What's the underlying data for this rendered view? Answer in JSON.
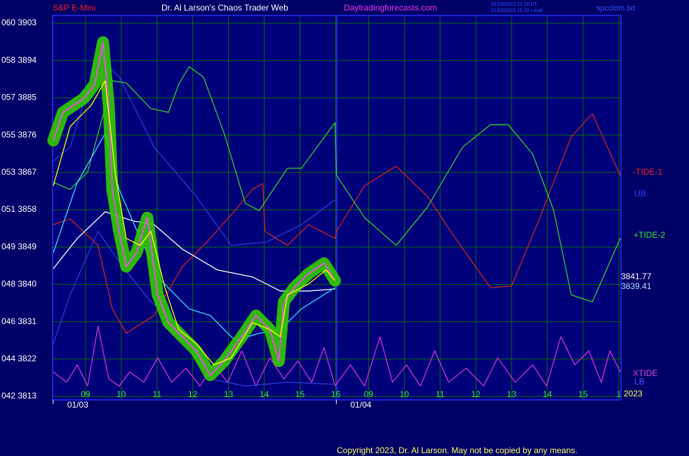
{
  "chart_data": {
    "type": "line",
    "title": "Dr. Al Larson's Chaos Trader Web",
    "subtitle": "S&P E-Mini",
    "site": "Daytradingforecasts.com",
    "timestamps": [
      "01/03/2023 21:20 UT",
      "01/03/2023 15:20 Local"
    ],
    "file": "spcclom.txt",
    "copyright": "Copyright 2023, Dr. Al Larson. May not be copied by any means.",
    "year": "2023",
    "date_labels": [
      {
        "value": 0.92,
        "label": "01/03"
      },
      {
        "value": 8.84,
        "label": "01/04"
      }
    ],
    "last_values": [
      "3841.77",
      "3839.41"
    ],
    "grid": true,
    "xlim": [
      0,
      15.9
    ],
    "ylim": [
      3812.15,
      3904.86
    ],
    "xticks": [
      {
        "value": 0.92,
        "label": "09"
      },
      {
        "value": 1.92,
        "label": "10"
      },
      {
        "value": 2.92,
        "label": "11"
      },
      {
        "value": 3.92,
        "label": "12"
      },
      {
        "value": 4.92,
        "label": "13"
      },
      {
        "value": 5.92,
        "label": "14"
      },
      {
        "value": 6.92,
        "label": "15"
      },
      {
        "value": 7.92,
        "label": "16"
      },
      {
        "value": 8.84,
        "label": "09"
      },
      {
        "value": 9.84,
        "label": "10"
      },
      {
        "value": 10.84,
        "label": "11"
      },
      {
        "value": 11.84,
        "label": "12"
      },
      {
        "value": 12.84,
        "label": "13"
      },
      {
        "value": 13.84,
        "label": "14"
      },
      {
        "value": 14.84,
        "label": "15"
      },
      {
        "value": 15.84,
        "label": "1"
      }
    ],
    "yticks": [
      {
        "value": 3813,
        "label": "042 3813"
      },
      {
        "value": 3822,
        "label": "044 3822"
      },
      {
        "value": 3831,
        "label": "046 3831"
      },
      {
        "value": 3840,
        "label": "048 3840"
      },
      {
        "value": 3849,
        "label": "049 3849"
      },
      {
        "value": 3858,
        "label": "051 3858"
      },
      {
        "value": 3867,
        "label": "053 3867"
      },
      {
        "value": 3876,
        "label": "055 3876"
      },
      {
        "value": 3885,
        "label": "057 3885"
      },
      {
        "value": 3894,
        "label": "058 3894"
      },
      {
        "value": 3903,
        "label": "060 3903"
      }
    ],
    "series": [
      {
        "name": "XTIDE",
        "color": "#cc33cc",
        "x": [
          0.02,
          0.39,
          0.69,
          0.98,
          1.27,
          1.57,
          1.86,
          2.16,
          2.55,
          2.94,
          3.33,
          3.73,
          4.12,
          4.51,
          4.9,
          5.29,
          5.69,
          6.08,
          6.47,
          6.86,
          7.25,
          7.59,
          7.9,
          8.33,
          8.73,
          9.16,
          9.51,
          9.9,
          10.29,
          10.69,
          11.08,
          11.57,
          12.06,
          12.45,
          12.94,
          13.43,
          13.82,
          14.22,
          14.61,
          15.0,
          15.35,
          15.59,
          15.88
        ],
        "values": [
          3818.9,
          3816.4,
          3820.6,
          3815.5,
          3829.9,
          3817.2,
          3815.5,
          3818.9,
          3816.4,
          3822.3,
          3816.4,
          3819.8,
          3815.5,
          3820.6,
          3816.4,
          3824.0,
          3815.5,
          3822.3,
          3817.2,
          3821.5,
          3816.4,
          3824.8,
          3815.5,
          3820.6,
          3815.5,
          3827.4,
          3816.4,
          3820.6,
          3815.5,
          3824.0,
          3816.4,
          3819.8,
          3815.5,
          3822.3,
          3816.4,
          3820.6,
          3815.5,
          3827.4,
          3820.6,
          3824.0,
          3816.4,
          3824.0,
          3818.9
        ]
      },
      {
        "name": "LB",
        "color": "#2a3ad8",
        "x": [
          0.02,
          0.49,
          1.27,
          1.96,
          2.75,
          3.63,
          4.41,
          5.39,
          6.57,
          7.9
        ],
        "values": [
          3825.7,
          3837.5,
          3852.8,
          3844.3,
          3835.8,
          3829.1,
          3817.2,
          3815.5,
          3816.4,
          3815.9
        ]
      },
      {
        "name": "UB",
        "color": "#2a3ad8",
        "x": [
          0.02,
          0.49,
          1.27,
          1.86,
          2.84,
          4.02,
          5.0,
          5.98,
          6.96,
          7.9
        ],
        "values": [
          3869.7,
          3873.1,
          3895.1,
          3890.0,
          3873.1,
          3861.2,
          3849.4,
          3850.2,
          3854.4,
          3860.4
        ]
      },
      {
        "name": "-TIDE-1",
        "color": "#cc2222",
        "x": [
          0.02,
          0.49,
          1.27,
          1.67,
          2.06,
          2.84,
          3.63,
          4.41,
          5.1,
          5.59,
          5.88,
          5.94,
          6.57,
          7.16,
          7.9,
          7.94,
          8.73,
          9.61,
          10.49,
          11.27,
          12.25,
          12.84,
          13.63,
          14.51,
          15.1,
          15.88
        ],
        "values": [
          3854.4,
          3855.8,
          3849.4,
          3834.1,
          3828.2,
          3832.5,
          3844.3,
          3851.1,
          3857.8,
          3862.9,
          3864.3,
          3852.8,
          3849.4,
          3854.4,
          3851.1,
          3852.8,
          3863.8,
          3868.5,
          3861.2,
          3851.1,
          3839.2,
          3839.6,
          3856.1,
          3875.6,
          3881.2,
          3866.3
        ]
      },
      {
        "name": "+TIDE-2",
        "color": "#33cc33",
        "x": [
          0.02,
          0.49,
          0.98,
          1.67,
          2.06,
          2.75,
          3.24,
          3.53,
          3.82,
          4.22,
          4.8,
          5.39,
          5.78,
          6.57,
          6.96,
          7.9,
          7.94,
          8.73,
          9.61,
          10.49,
          11.47,
          12.25,
          12.75,
          13.43,
          14.02,
          14.51,
          15.1,
          15.88
        ],
        "values": [
          3864.6,
          3862.9,
          3867.1,
          3889.1,
          3888.6,
          3882.4,
          3881.5,
          3888.3,
          3892.5,
          3890.0,
          3876.4,
          3859.5,
          3857.8,
          3868.0,
          3868.0,
          3879.0,
          3866.3,
          3856.1,
          3849.4,
          3858.7,
          3873.1,
          3878.5,
          3878.5,
          3871.4,
          3857.8,
          3837.5,
          3835.8,
          3851.1
        ]
      },
      {
        "name": "white",
        "color": "#ffffff",
        "x": [
          0.02,
          0.69,
          1.47,
          2.25,
          2.84,
          3.63,
          4.61,
          5.59,
          6.37,
          7.16,
          7.9
        ],
        "values": [
          3843.8,
          3851.1,
          3857.5,
          3855.3,
          3854.4,
          3848.5,
          3843.5,
          3841.8,
          3838.4,
          3838.4,
          3838.9
        ]
      },
      {
        "name": "cyan",
        "color": "#33ddff",
        "x": [
          0.02,
          0.69,
          1.47,
          1.86,
          2.45,
          3.04,
          3.82,
          4.41,
          5.1,
          5.78,
          6.37,
          6.96,
          7.9
        ],
        "values": [
          3847.7,
          3864.6,
          3876.4,
          3862.9,
          3851.1,
          3840.9,
          3834.1,
          3832.5,
          3826.5,
          3828.2,
          3829.1,
          3834.1,
          3839.2
        ]
      },
      {
        "name": "price",
        "color": "#dd55dd",
        "halo": "#33cc00",
        "x": [
          0.02,
          0.29,
          0.59,
          0.88,
          1.18,
          1.41,
          1.57,
          1.67,
          1.86,
          2.06,
          2.35,
          2.65,
          2.94,
          3.24,
          3.63,
          4.02,
          4.41,
          4.8,
          5.29,
          5.69,
          6.08,
          6.33,
          6.47,
          6.76,
          7.16,
          7.59,
          7.9
        ],
        "values": [
          3874.7,
          3881.5,
          3883.2,
          3884.9,
          3888.3,
          3898.4,
          3883.2,
          3862.9,
          3852.8,
          3844.3,
          3847.7,
          3856.1,
          3837.5,
          3830.8,
          3827.4,
          3824.0,
          3818.1,
          3821.5,
          3827.4,
          3832.5,
          3829.1,
          3821.5,
          3835.8,
          3839.2,
          3842.6,
          3845.1,
          3840.9
        ]
      },
      {
        "name": "yellow",
        "color": "#ffff00",
        "x": [
          0.02,
          0.49,
          1.08,
          1.47,
          1.76,
          2.06,
          2.45,
          2.75,
          3.14,
          3.53,
          4.02,
          4.51,
          5.0,
          5.59,
          6.08,
          6.37,
          6.57,
          7.16,
          7.65,
          7.9
        ],
        "values": [
          3863.8,
          3878.1,
          3883.2,
          3889.1,
          3866.3,
          3851.1,
          3849.4,
          3852.8,
          3839.2,
          3829.1,
          3825.7,
          3820.6,
          3822.3,
          3830.8,
          3829.1,
          3827.4,
          3837.5,
          3840.1,
          3843.5,
          3840.9
        ]
      }
    ]
  }
}
